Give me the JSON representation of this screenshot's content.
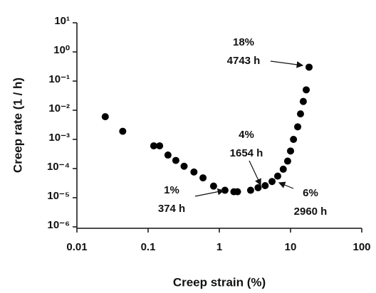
{
  "chart_data": {
    "type": "scatter",
    "xlabel": "Creep strain (%)",
    "ylabel": "Creep rate (1 / h)",
    "xlog": true,
    "ylog": true,
    "color": "#000000",
    "xlim": [
      0.01,
      100
    ],
    "xticks": [
      0.01,
      0.1,
      1,
      10,
      100
    ],
    "ylim": [
      1e-06,
      10
    ],
    "yticks": [
      {
        "value": 1e-06,
        "label": "10⁻⁶"
      },
      {
        "value": 1e-05,
        "label": "10⁻⁵"
      },
      {
        "value": 0.0001,
        "label": "10⁻⁴"
      },
      {
        "value": 0.001,
        "label": "10⁻³"
      },
      {
        "value": 0.01,
        "label": "10⁻²"
      },
      {
        "value": 0.1,
        "label": "10⁻¹"
      },
      {
        "value": 1,
        "label": "10⁰"
      },
      {
        "value": 10,
        "label": "10¹"
      }
    ],
    "x": [
      0.025,
      0.044,
      0.12,
      0.145,
      0.19,
      0.245,
      0.32,
      0.44,
      0.59,
      0.83,
      1.2,
      1.6,
      1.8,
      2.75,
      3.5,
      4.4,
      5.5,
      6.6,
      7.9,
      9.1,
      10,
      11,
      12.6,
      13.8,
      15.1,
      16.6,
      18.2
    ],
    "values": [
      0.006,
      0.0019,
      0.0006,
      0.0006,
      0.00029,
      0.00019,
      0.00012,
      7.6e-05,
      4.8e-05,
      2.5e-05,
      1.8e-05,
      1.6e-05,
      1.6e-05,
      1.8e-05,
      2.2e-05,
      2.6e-05,
      3.6e-05,
      5.5e-05,
      9.5e-05,
      0.00018,
      0.0004,
      0.001,
      0.0027,
      0.0075,
      0.02,
      0.05,
      0.3
    ],
    "annotations": [
      {
        "lines": [
          "18%",
          "4743 h"
        ]
      },
      {
        "lines": [
          "4%",
          "1654 h"
        ]
      },
      {
        "lines": [
          "1%",
          "374 h"
        ]
      },
      {
        "lines": [
          "6%",
          "2960 h"
        ]
      }
    ]
  }
}
